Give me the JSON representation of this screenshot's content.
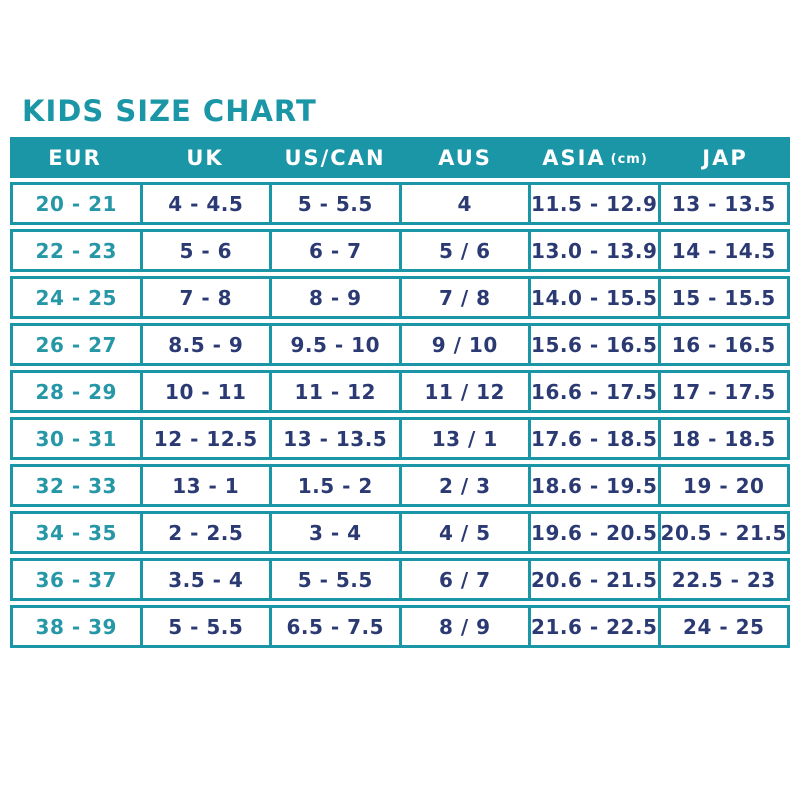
{
  "page": {
    "title": "KIDS SIZE CHART"
  },
  "colors": {
    "teal": "#1b96a6",
    "navy": "#2b3a73",
    "header_text": "#ffffff",
    "background": "#ffffff"
  },
  "table": {
    "columns": [
      {
        "key": "eur",
        "label": "EUR"
      },
      {
        "key": "uk",
        "label": "UK"
      },
      {
        "key": "uscan",
        "label": "US/CAN"
      },
      {
        "key": "aus",
        "label": "AUS"
      },
      {
        "key": "asia",
        "label": "ASIA",
        "unit": "(cm)"
      },
      {
        "key": "jap",
        "label": "JAP"
      }
    ],
    "rows": [
      [
        "20 - 21",
        "4 - 4.5",
        "5 - 5.5",
        "4",
        "11.5 - 12.9",
        "13 - 13.5"
      ],
      [
        "22 - 23",
        "5 - 6",
        "6 - 7",
        "5 / 6",
        "13.0 - 13.9",
        "14 - 14.5"
      ],
      [
        "24 - 25",
        "7 - 8",
        "8 - 9",
        "7 / 8",
        "14.0 - 15.5",
        "15 - 15.5"
      ],
      [
        "26 - 27",
        "8.5 - 9",
        "9.5 - 10",
        "9 / 10",
        "15.6 - 16.5",
        "16 - 16.5"
      ],
      [
        "28 - 29",
        "10 - 11",
        "11 - 12",
        "11 / 12",
        "16.6 - 17.5",
        "17 - 17.5"
      ],
      [
        "30 - 31",
        "12 - 12.5",
        "13 - 13.5",
        "13 / 1",
        "17.6 - 18.5",
        "18 - 18.5"
      ],
      [
        "32 - 33",
        "13 - 1",
        "1.5 - 2",
        "2 / 3",
        "18.6 - 19.5",
        "19 - 20"
      ],
      [
        "34 - 35",
        "2 - 2.5",
        "3 - 4",
        "4 / 5",
        "19.6 - 20.5",
        "20.5 - 21.5"
      ],
      [
        "36 - 37",
        "3.5 - 4",
        "5 - 5.5",
        "6 / 7",
        "20.6 - 21.5",
        "22.5 - 23"
      ],
      [
        "38 - 39",
        "5 - 5.5",
        "6.5 - 7.5",
        "8 / 9",
        "21.6 - 22.5",
        "24 - 25"
      ]
    ]
  },
  "chart_data": {
    "type": "table",
    "title": "KIDS SIZE CHART",
    "columns": [
      "EUR",
      "UK",
      "US/CAN",
      "AUS",
      "ASIA (cm)",
      "JAP"
    ],
    "rows": [
      [
        "20 - 21",
        "4 - 4.5",
        "5 - 5.5",
        "4",
        "11.5 - 12.9",
        "13 - 13.5"
      ],
      [
        "22 - 23",
        "5 - 6",
        "6 - 7",
        "5 / 6",
        "13.0 - 13.9",
        "14 - 14.5"
      ],
      [
        "24 - 25",
        "7 - 8",
        "8 - 9",
        "7 / 8",
        "14.0 - 15.5",
        "15 - 15.5"
      ],
      [
        "26 - 27",
        "8.5 - 9",
        "9.5 - 10",
        "9 / 10",
        "15.6 - 16.5",
        "16 - 16.5"
      ],
      [
        "28 - 29",
        "10 - 11",
        "11 - 12",
        "11 / 12",
        "16.6 - 17.5",
        "17 - 17.5"
      ],
      [
        "30 - 31",
        "12 - 12.5",
        "13 - 13.5",
        "13 / 1",
        "17.6 - 18.5",
        "18 - 18.5"
      ],
      [
        "32 - 33",
        "13 - 1",
        "1.5 - 2",
        "2 / 3",
        "18.6 - 19.5",
        "19 - 20"
      ],
      [
        "34 - 35",
        "2 - 2.5",
        "3 - 4",
        "4 / 5",
        "19.6 - 20.5",
        "20.5 - 21.5"
      ],
      [
        "36 - 37",
        "3.5 - 4",
        "5 - 5.5",
        "6 / 7",
        "20.6 - 21.5",
        "22.5 - 23"
      ],
      [
        "38 - 39",
        "5 - 5.5",
        "6.5 - 7.5",
        "8 / 9",
        "21.6 - 22.5",
        "24 - 25"
      ]
    ]
  }
}
